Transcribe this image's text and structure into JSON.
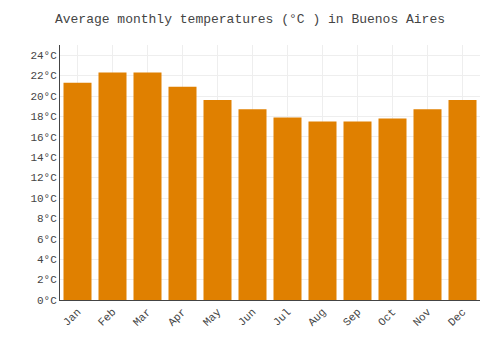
{
  "chart_data": {
    "type": "bar",
    "title": "Average monthly temperatures (°C ) in Buenos Aires",
    "categories": [
      "Jan",
      "Feb",
      "Mar",
      "Apr",
      "May",
      "Jun",
      "Jul",
      "Aug",
      "Sep",
      "Oct",
      "Nov",
      "Dec"
    ],
    "values": [
      21.3,
      22.3,
      22.3,
      20.9,
      19.6,
      18.7,
      17.9,
      17.5,
      17.5,
      17.8,
      18.7,
      19.6
    ],
    "color": "#E08000",
    "ylim": [
      0,
      25
    ],
    "yticks": [
      {
        "value": 0,
        "label": "0°C"
      },
      {
        "value": 2,
        "label": "2°C"
      },
      {
        "value": 4,
        "label": "4°C"
      },
      {
        "value": 6,
        "label": "6°C"
      },
      {
        "value": 8,
        "label": "8°C"
      },
      {
        "value": 10,
        "label": "10°C"
      },
      {
        "value": 12,
        "label": "12°C"
      },
      {
        "value": 14,
        "label": "14°C"
      },
      {
        "value": 16,
        "label": "16°C"
      },
      {
        "value": 18,
        "label": "18°C"
      },
      {
        "value": 20,
        "label": "20°C"
      },
      {
        "value": 22,
        "label": "22°C"
      },
      {
        "value": 24,
        "label": "24°C"
      }
    ],
    "grid": true
  }
}
